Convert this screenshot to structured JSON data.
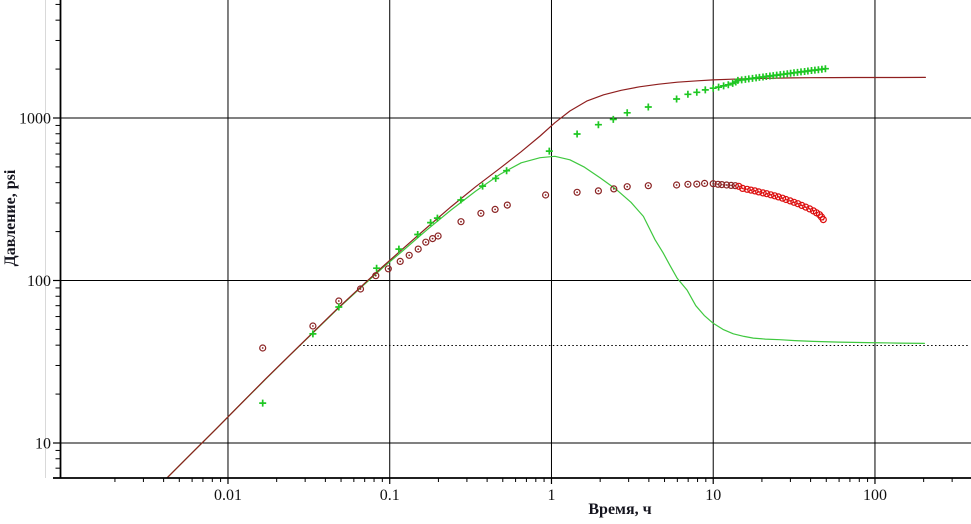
{
  "chart_data": {
    "type": "line+scatter",
    "title": "",
    "xlabel": "Время, ч",
    "ylabel": "Давление, psi",
    "x_scale": "log",
    "y_scale": "log",
    "x_range": [
      0.000915,
      376
    ],
    "y_range": [
      6.09,
      5030
    ],
    "x_ticks": [
      0.01,
      0.1,
      1,
      10,
      100
    ],
    "x_tick_labels": [
      "0.01",
      "0.1",
      "1",
      "10",
      "100"
    ],
    "y_ticks": [
      10,
      100,
      1000
    ],
    "y_tick_labels": [
      "10",
      "100",
      "1000"
    ],
    "grid": true,
    "grid_color": "#000000",
    "axis_color": "#000000",
    "background": "#ffffff",
    "text_color": "#111111",
    "series": [
      {
        "name": "reference-line",
        "type": "dotted-line",
        "color": "#000000",
        "points": [
          [
            0.0276,
            39.8
          ],
          [
            376,
            39.8
          ]
        ]
      },
      {
        "name": "derivative-model",
        "type": "line",
        "color": "#3fc83f",
        "points": [
          [
            0.0042,
            6.1
          ],
          [
            0.006,
            8.7
          ],
          [
            0.0085,
            12.3
          ],
          [
            0.012,
            17.4
          ],
          [
            0.017,
            24.6
          ],
          [
            0.024,
            34.5
          ],
          [
            0.0335,
            47.5
          ],
          [
            0.047,
            66
          ],
          [
            0.066,
            90
          ],
          [
            0.09,
            119
          ],
          [
            0.12,
            152
          ],
          [
            0.17,
            205
          ],
          [
            0.24,
            272
          ],
          [
            0.34,
            355
          ],
          [
            0.48,
            450
          ],
          [
            0.65,
            530
          ],
          [
            0.85,
            570
          ],
          [
            1.05,
            581
          ],
          [
            1.3,
            553
          ],
          [
            1.6,
            498
          ],
          [
            2.0,
            428
          ],
          [
            2.5,
            365
          ],
          [
            3.1,
            303
          ],
          [
            3.7,
            248
          ],
          [
            4.37,
            178
          ],
          [
            4.9,
            148
          ],
          [
            5.4,
            124
          ],
          [
            6.0,
            103
          ],
          [
            6.9,
            87
          ],
          [
            7.8,
            70
          ],
          [
            8.8,
            61
          ],
          [
            10,
            54.5
          ],
          [
            11.5,
            50
          ],
          [
            13.3,
            47
          ],
          [
            15.5,
            45.3
          ],
          [
            17.7,
            44.2
          ],
          [
            21,
            43.6
          ],
          [
            25.8,
            43.2
          ],
          [
            32,
            42.7
          ],
          [
            41.4,
            42.2
          ],
          [
            60,
            41.8
          ],
          [
            90,
            41.5
          ],
          [
            140,
            41.2
          ],
          [
            202,
            41.0
          ]
        ]
      },
      {
        "name": "pressure-model",
        "type": "line",
        "color": "#8f1f1f",
        "points": [
          [
            0.0042,
            6.1
          ],
          [
            0.006,
            8.7
          ],
          [
            0.0085,
            12.3
          ],
          [
            0.012,
            17.4
          ],
          [
            0.017,
            24.7
          ],
          [
            0.024,
            34.6
          ],
          [
            0.0335,
            47.8
          ],
          [
            0.047,
            66.5
          ],
          [
            0.066,
            91
          ],
          [
            0.09,
            121
          ],
          [
            0.12,
            156
          ],
          [
            0.17,
            212
          ],
          [
            0.24,
            285
          ],
          [
            0.34,
            378
          ],
          [
            0.48,
            490
          ],
          [
            0.65,
            620
          ],
          [
            0.85,
            775
          ],
          [
            1.05,
            935
          ],
          [
            1.3,
            1105
          ],
          [
            1.65,
            1270
          ],
          [
            2.1,
            1390
          ],
          [
            2.7,
            1480
          ],
          [
            3.5,
            1555
          ],
          [
            4.6,
            1615
          ],
          [
            6.0,
            1660
          ],
          [
            8.0,
            1695
          ],
          [
            10,
            1715
          ],
          [
            13,
            1733
          ],
          [
            17,
            1747
          ],
          [
            22,
            1756
          ],
          [
            30,
            1764
          ],
          [
            40,
            1769
          ],
          [
            55,
            1772
          ],
          [
            75,
            1774
          ],
          [
            100,
            1775
          ],
          [
            140,
            1776
          ],
          [
            205,
            1777
          ]
        ]
      },
      {
        "name": "derivative-data-early",
        "type": "scatter",
        "marker": "circle-dot",
        "color": "#8b2424",
        "points": [
          [
            0.0164,
            38.4
          ],
          [
            0.0335,
            52.5
          ],
          [
            0.0484,
            74.8
          ],
          [
            0.066,
            88.7
          ],
          [
            0.082,
            107
          ],
          [
            0.098,
            118
          ],
          [
            0.116,
            131
          ],
          [
            0.132,
            143
          ],
          [
            0.15,
            156
          ],
          [
            0.167,
            172
          ],
          [
            0.184,
            181
          ],
          [
            0.199,
            188
          ],
          [
            0.276,
            230
          ],
          [
            0.366,
            259
          ],
          [
            0.448,
            274
          ],
          [
            0.533,
            291
          ],
          [
            0.92,
            336
          ],
          [
            1.44,
            349
          ],
          [
            1.95,
            356
          ],
          [
            2.43,
            366
          ],
          [
            2.94,
            378
          ],
          [
            3.97,
            383
          ],
          [
            5.94,
            387
          ],
          [
            6.97,
            391
          ],
          [
            7.92,
            392
          ],
          [
            8.84,
            396
          ],
          [
            10.0,
            394
          ],
          [
            10.7,
            391
          ],
          [
            11.3,
            389
          ],
          [
            12.1,
            387
          ],
          [
            12.9,
            385
          ],
          [
            13.7,
            383
          ]
        ]
      },
      {
        "name": "derivative-data-late",
        "type": "scatter",
        "marker": "circle-dot",
        "color": "#dd0d0d",
        "points": [
          [
            14.4,
            380
          ],
          [
            15.2,
            369
          ],
          [
            16.2,
            364
          ],
          [
            17.1,
            360
          ],
          [
            18.1,
            356
          ],
          [
            19.1,
            351
          ],
          [
            20.3,
            346
          ],
          [
            21.4,
            342
          ],
          [
            22.7,
            337
          ],
          [
            24,
            332
          ],
          [
            25.3,
            327
          ],
          [
            26.8,
            321
          ],
          [
            28.2,
            315
          ],
          [
            29.9,
            309
          ],
          [
            31.6,
            303
          ],
          [
            33.4,
            297
          ],
          [
            35.3,
            290
          ],
          [
            37.3,
            283
          ],
          [
            39.5,
            276
          ],
          [
            41.7,
            268
          ],
          [
            43.5,
            261
          ],
          [
            45.4,
            254
          ],
          [
            46.7,
            246
          ],
          [
            47.9,
            237
          ]
        ]
      },
      {
        "name": "pressure-data",
        "type": "scatter",
        "marker": "plus",
        "color": "#1fc723",
        "points": [
          [
            0.0164,
            17.6
          ],
          [
            0.0335,
            46.9
          ],
          [
            0.0484,
            68.7
          ],
          [
            0.083,
            119
          ],
          [
            0.114,
            156
          ],
          [
            0.149,
            192
          ],
          [
            0.179,
            227
          ],
          [
            0.197,
            242
          ],
          [
            0.275,
            313
          ],
          [
            0.375,
            381
          ],
          [
            0.452,
            425
          ],
          [
            0.528,
            474
          ],
          [
            0.97,
            626
          ],
          [
            1.44,
            797
          ],
          [
            1.95,
            910
          ],
          [
            2.41,
            981
          ],
          [
            2.94,
            1077
          ],
          [
            3.97,
            1169
          ],
          [
            5.94,
            1309
          ],
          [
            6.97,
            1400
          ],
          [
            7.92,
            1439
          ],
          [
            8.93,
            1490
          ],
          [
            10.0,
            1525
          ],
          [
            10.8,
            1550
          ],
          [
            11.6,
            1575
          ],
          [
            12.4,
            1600
          ],
          [
            13.2,
            1632
          ],
          [
            13.8,
            1666
          ],
          [
            14.2,
            1703
          ],
          [
            15.0,
            1716
          ],
          [
            15.8,
            1729
          ],
          [
            16.6,
            1741
          ],
          [
            17.5,
            1753
          ],
          [
            18.4,
            1765
          ],
          [
            19.3,
            1777
          ],
          [
            20.3,
            1789
          ],
          [
            21.3,
            1800
          ],
          [
            22.4,
            1813
          ],
          [
            23.5,
            1824
          ],
          [
            24.7,
            1836
          ],
          [
            26.0,
            1849
          ],
          [
            27.3,
            1861
          ],
          [
            28.7,
            1873
          ],
          [
            30.1,
            1885
          ],
          [
            31.6,
            1897
          ],
          [
            33.2,
            1909
          ],
          [
            34.9,
            1922
          ],
          [
            36.7,
            1934
          ],
          [
            38.5,
            1946
          ],
          [
            40.5,
            1959
          ],
          [
            42.5,
            1971
          ],
          [
            44.7,
            1984
          ],
          [
            47.0,
            1997
          ],
          [
            49.4,
            2010
          ]
        ]
      }
    ]
  }
}
